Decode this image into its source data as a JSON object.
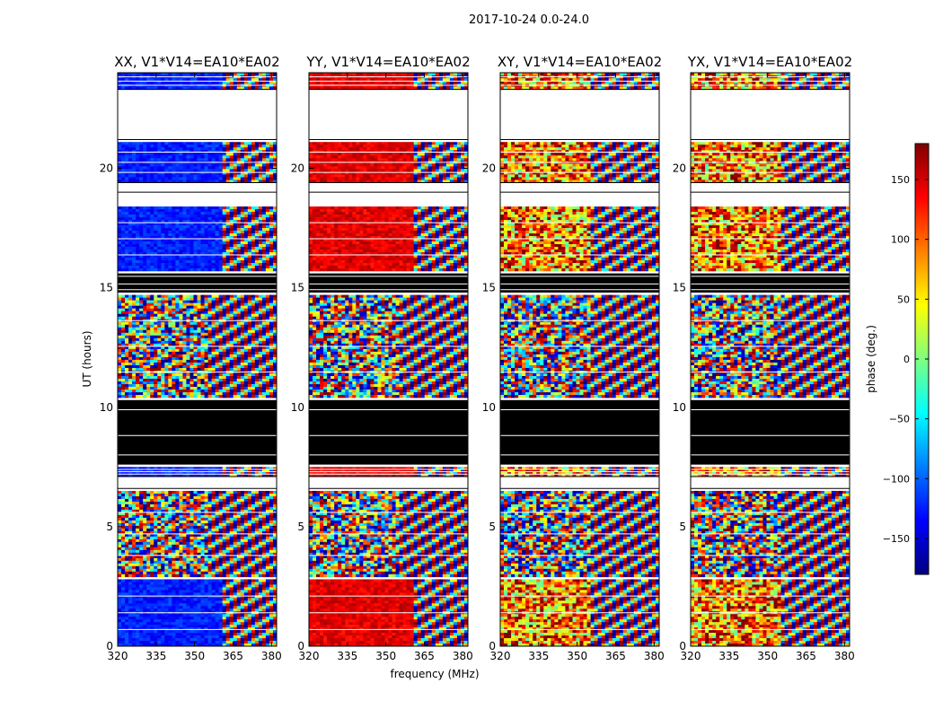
{
  "chart_data": {
    "type": "heatmap",
    "suptitle": "2017-10-24 0.0-24.0",
    "xlabel": "frequency (MHz)",
    "ylabel": "UT (hours)",
    "xlim": [
      320,
      382
    ],
    "ylim": [
      0,
      24
    ],
    "xticks": [
      320,
      335,
      350,
      365,
      380
    ],
    "yticks": [
      0,
      5,
      10,
      15,
      20
    ],
    "colorbar": {
      "label": "phase (deg.)",
      "range": [
        -180,
        180
      ],
      "ticks": [
        150,
        100,
        50,
        0,
        -50,
        -100,
        -150
      ],
      "tick_labels": [
        "150",
        "100",
        "50",
        "0",
        "−50",
        "−100",
        "−150"
      ],
      "colormap": "jet",
      "colors": [
        "#00007f",
        "#0000ff",
        "#007fff",
        "#00ffff",
        "#7fff7f",
        "#ffff00",
        "#ff7f00",
        "#ff0000",
        "#7f0000"
      ]
    },
    "panels": [
      {
        "title": "XX, V1*V14=EA10*EA02",
        "low_freq_phase": -125
      },
      {
        "title": "YY, V1*V14=EA10*EA02",
        "low_freq_phase": 145
      },
      {
        "title": "XY, V1*V14=EA10*EA02",
        "low_freq_phase": null
      },
      {
        "title": "YX, V1*V14=EA10*EA02",
        "low_freq_phase": null
      }
    ],
    "coherent_cutoff_mhz": 360,
    "flagged_black_ut": [
      [
        7.6,
        10.3
      ],
      [
        14.8,
        15.6
      ]
    ],
    "no_data_white_ut": [
      [
        6.6,
        7.1
      ],
      [
        19.0,
        19.4
      ],
      [
        21.2,
        23.3
      ]
    ],
    "data_bands_ut": [
      {
        "range": [
          0.0,
          2.8
        ],
        "coherent": true
      },
      {
        "range": [
          2.9,
          6.5
        ],
        "coherent": false
      },
      {
        "range": [
          7.1,
          7.5
        ],
        "coherent": true
      },
      {
        "range": [
          10.4,
          14.7
        ],
        "coherent": false
      },
      {
        "range": [
          15.7,
          18.4
        ],
        "coherent": true
      },
      {
        "range": [
          19.4,
          21.1
        ],
        "coherent": true
      },
      {
        "range": [
          23.3,
          24.0
        ],
        "coherent": true
      }
    ]
  }
}
